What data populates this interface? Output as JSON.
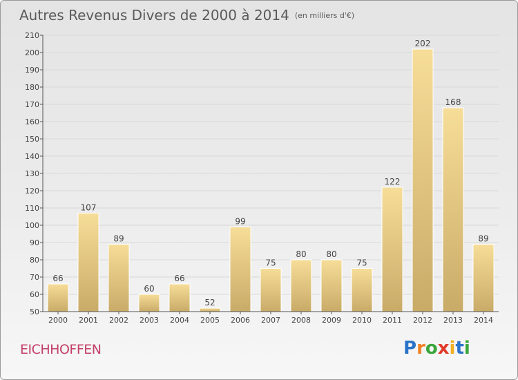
{
  "chart_data": {
    "type": "bar",
    "title": "Autres Revenus Divers de 2000 à 2014",
    "unit_label": "(en milliers d'€)",
    "categories": [
      "2000",
      "2001",
      "2002",
      "2003",
      "2004",
      "2005",
      "2006",
      "2007",
      "2008",
      "2009",
      "2010",
      "2011",
      "2012",
      "2013",
      "2014"
    ],
    "values": [
      66,
      107,
      89,
      60,
      66,
      52,
      99,
      75,
      80,
      80,
      75,
      122,
      202,
      168,
      89
    ],
    "ylim": [
      50,
      210
    ],
    "yticks": [
      50,
      60,
      70,
      80,
      90,
      100,
      110,
      120,
      130,
      140,
      150,
      160,
      170,
      180,
      190,
      200,
      210
    ],
    "grid": true,
    "bar_color": "#e8cf8a"
  },
  "footer": {
    "commune": "EICHHOFFEN",
    "logo_letters": [
      "P",
      "r",
      "o",
      "x",
      "i",
      "t",
      "i"
    ],
    "logo_colors": [
      "#2a73c9",
      "#f07f22",
      "#3aa63a",
      "#e03a2a",
      "#f0b020",
      "#2a73c9",
      "#3aa63a"
    ]
  }
}
